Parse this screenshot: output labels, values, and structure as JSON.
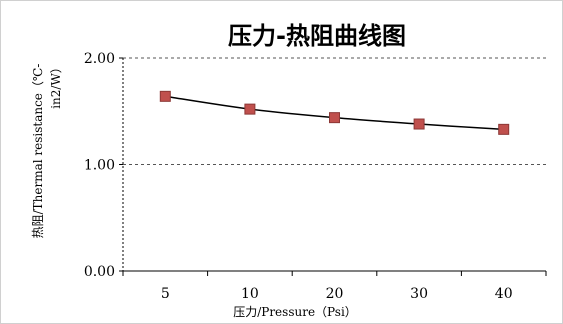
{
  "chart_data": {
    "type": "line",
    "title": "压力-热阻曲线图",
    "xlabel": "压力/Pressure（Psi）",
    "ylabel_lines": [
      "热阻/Thermal resistance（℃-",
      "in2/W）"
    ],
    "categories": [
      "5",
      "10",
      "20",
      "30",
      "40"
    ],
    "series": [
      {
        "values": [
          1.64,
          1.52,
          1.44,
          1.38,
          1.33
        ],
        "line_color": "#000000",
        "marker": "square",
        "marker_fill": "#c0504d",
        "marker_stroke": "#8c3836"
      }
    ],
    "ylim": [
      0,
      2
    ],
    "yticks": [
      "0.00",
      "1.00",
      "2.00"
    ],
    "ytick_values": [
      0,
      1,
      2
    ],
    "grid": "horizontal-dashed",
    "legend": "none"
  }
}
